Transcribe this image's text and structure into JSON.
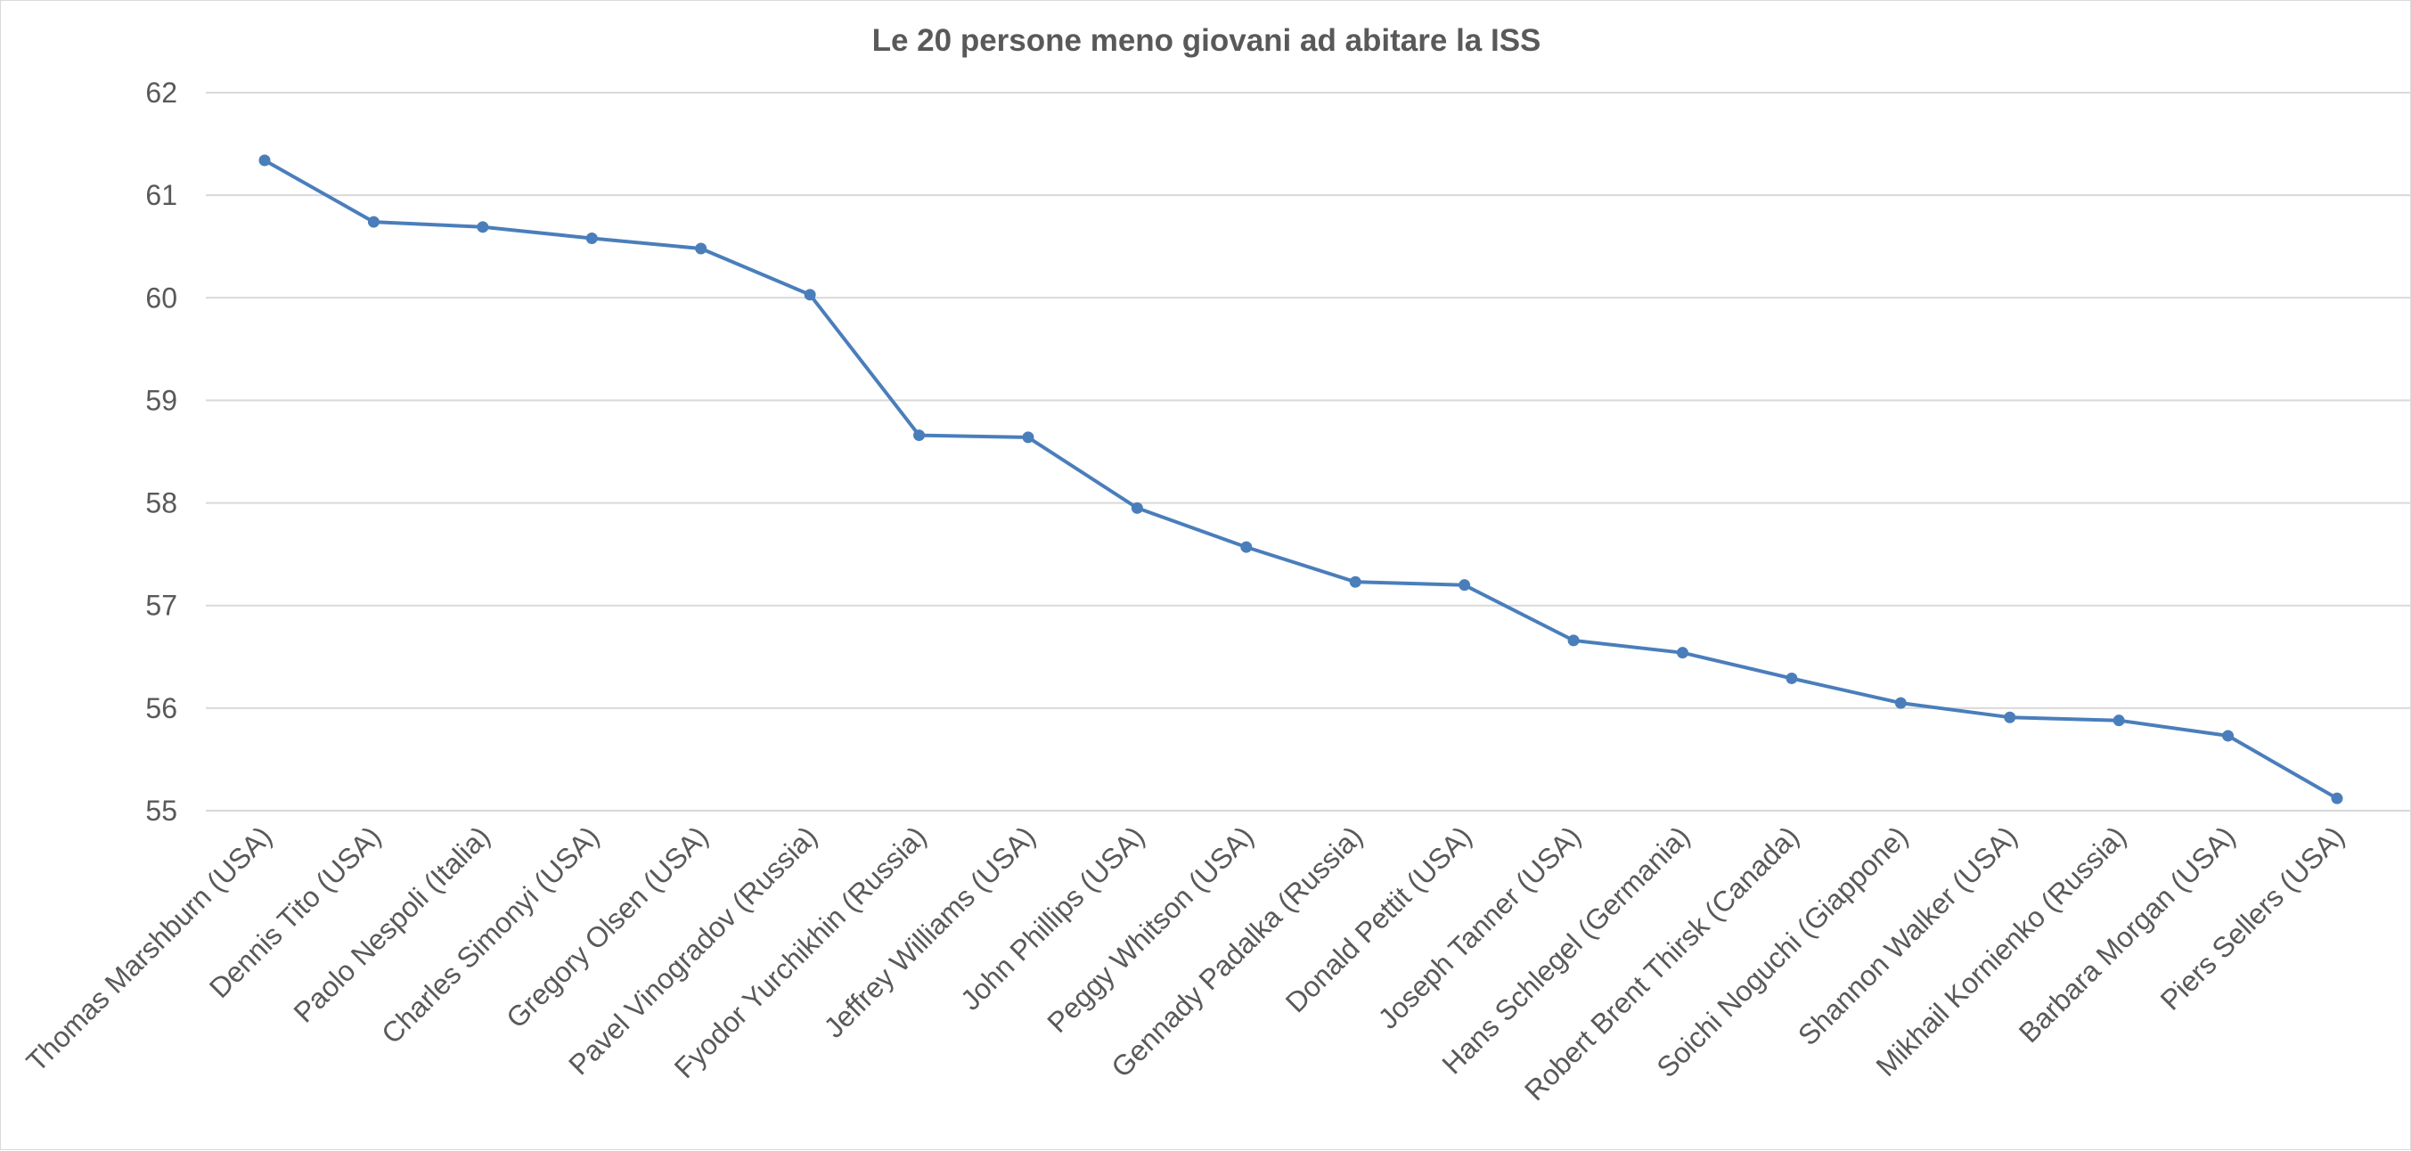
{
  "chart_data": {
    "type": "line",
    "title": "Le 20 persone meno giovani ad abitare la ISS",
    "xlabel": "",
    "ylabel": "",
    "ylim": [
      55,
      62
    ],
    "yticks": [
      "55",
      "56",
      "57",
      "58",
      "59",
      "60",
      "61",
      "62"
    ],
    "grid": true,
    "legend": "none",
    "colors": {
      "series": "#4a7ebb",
      "grid": "#d9d9d9",
      "text": "#595959"
    },
    "categories": [
      "Thomas Marshburn (USA)",
      "Dennis Tito (USA)",
      "Paolo Nespoli (Italia)",
      "Charles Simonyi (USA)",
      "Gregory Olsen (USA)",
      "Pavel Vinogradov (Russia)",
      "Fyodor Yurchikhin (Russia)",
      "Jeffrey Williams (USA)",
      "John Phillips (USA)",
      "Peggy Whitson (USA)",
      "Gennady Padalka (Russia)",
      "Donald Pettit (USA)",
      "Joseph Tanner (USA)",
      "Hans Schlegel (Germania)",
      "Robert Brent Thirsk (Canada)",
      "Soichi Noguchi (Giappone)",
      "Shannon Walker (USA)",
      "Mikhail Kornienko (Russia)",
      "Barbara Morgan (USA)",
      "Piers Sellers (USA)"
    ],
    "series": [
      {
        "values": [
          61.34,
          60.74,
          60.69,
          60.58,
          60.48,
          60.03,
          58.66,
          58.64,
          57.95,
          57.57,
          57.23,
          57.2,
          56.66,
          56.54,
          56.29,
          56.05,
          55.91,
          55.88,
          55.73,
          55.12
        ]
      }
    ]
  }
}
